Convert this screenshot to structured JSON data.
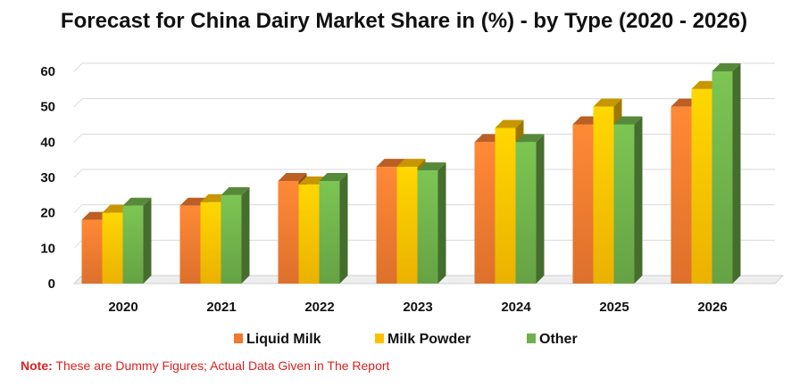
{
  "chart_data": {
    "type": "bar",
    "title": "Forecast for China Dairy Market Share in (%) - by Type (2020 - 2026)",
    "categories": [
      "2020",
      "2021",
      "2022",
      "2023",
      "2024",
      "2025",
      "2026"
    ],
    "series": [
      {
        "name": "Liquid Milk",
        "values": [
          18,
          22,
          29,
          33,
          40,
          45,
          50
        ]
      },
      {
        "name": "Milk Powder",
        "values": [
          20,
          23,
          28,
          33,
          44,
          50,
          55
        ]
      },
      {
        "name": "Other",
        "values": [
          22,
          25,
          29,
          32,
          40,
          45,
          60
        ]
      }
    ],
    "ylim": [
      0,
      60
    ],
    "yticks": [
      0,
      10,
      20,
      30,
      40,
      50,
      60
    ],
    "grid": true,
    "legend_position": "bottom",
    "style": "3d-clustered-column"
  },
  "colors": {
    "Liquid Milk": "#f07a30",
    "Milk Powder": "#ffc000",
    "Other": "#6fb04a"
  },
  "note": {
    "label": "Note:",
    "text": " These are Dummy Figures; Actual Data Given in The Report"
  }
}
